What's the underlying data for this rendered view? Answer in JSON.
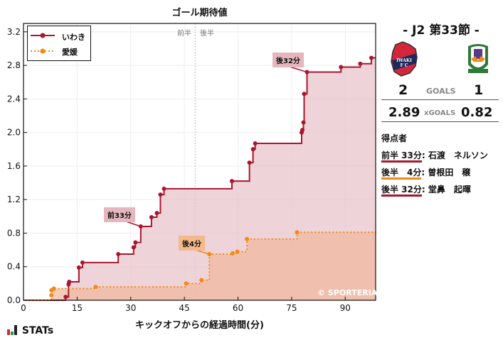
{
  "chart_data": {
    "type": "line",
    "subtype": "step",
    "title": "ゴール期待値",
    "xlabel": "キックオフからの経過時間(分)",
    "ylabel": "",
    "xlim": [
      0,
      98.5
    ],
    "ylim": [
      0,
      3.3
    ],
    "xticks": [
      0,
      15,
      30,
      45,
      60,
      75,
      90
    ],
    "yticks": [
      0.0,
      0.4,
      0.8,
      1.2,
      1.6,
      2.0,
      2.4,
      2.8,
      3.2
    ],
    "grid": true,
    "legend_position": "upper left",
    "halftime_line_x": 48,
    "halftime_labels": [
      "前半",
      "後半"
    ],
    "series": [
      {
        "name": "いわき",
        "color": "#a8162f",
        "fill": "#e8c4cb",
        "style": "solid",
        "points": [
          [
            0,
            0
          ],
          [
            11.8,
            0.04
          ],
          [
            12.6,
            0.19
          ],
          [
            12.8,
            0.22
          ],
          [
            15.5,
            0.39
          ],
          [
            16.5,
            0.45
          ],
          [
            26.5,
            0.55
          ],
          [
            30.8,
            0.63
          ],
          [
            31.3,
            0.69
          ],
          [
            32.8,
            0.88
          ],
          [
            35.8,
            0.99
          ],
          [
            37.3,
            1.04
          ],
          [
            38.3,
            1.26
          ],
          [
            39.3,
            1.33
          ],
          [
            58.3,
            1.42
          ],
          [
            63.2,
            1.64
          ],
          [
            64.2,
            1.8
          ],
          [
            64.8,
            1.87
          ],
          [
            77.8,
            2.0
          ],
          [
            78.0,
            2.03
          ],
          [
            78.3,
            2.12
          ],
          [
            78.5,
            2.46
          ],
          [
            79.3,
            2.72
          ],
          [
            88.8,
            2.78
          ],
          [
            94.2,
            2.82
          ],
          [
            97.3,
            2.89
          ],
          [
            98.5,
            2.89
          ]
        ]
      },
      {
        "name": "愛媛",
        "color": "#f28a12",
        "fill": "#f0b8a0",
        "style": "dotted",
        "points": [
          [
            0,
            0
          ],
          [
            7.8,
            0.06
          ],
          [
            7.8,
            0.12
          ],
          [
            8.5,
            0.14
          ],
          [
            20.2,
            0.16
          ],
          [
            45.5,
            0.2
          ],
          [
            49.8,
            0.24
          ],
          [
            52.0,
            0.55
          ],
          [
            58.5,
            0.56
          ],
          [
            59.8,
            0.58
          ],
          [
            62.5,
            0.73
          ],
          [
            76.5,
            0.81
          ],
          [
            98.5,
            0.82
          ]
        ]
      }
    ],
    "annotations": [
      {
        "text": "前33分",
        "x": 32.8,
        "y": 0.88,
        "team": "いわき"
      },
      {
        "text": "後4分",
        "x": 52.0,
        "y": 0.55,
        "team": "愛媛"
      },
      {
        "text": "後32分",
        "x": 79.3,
        "y": 2.72,
        "team": "いわき"
      }
    ],
    "watermark": "© SPORTERIA"
  },
  "side": {
    "round": "- J2 第33節 -",
    "home_logo": "iwaki-fc-crest",
    "away_logo": "ehime-fc-crest",
    "home_goals": "2",
    "goals_label": "GOALS",
    "away_goals": "1",
    "home_xg": "2.89",
    "xg_label": "xGOALS",
    "away_xg": "0.82",
    "scorers_title": "得点者",
    "scorers": [
      {
        "time": "前半 33分",
        "sep": ":",
        "name": " 石渡　ネルソン",
        "color": "#a8162f"
      },
      {
        "time": "後半　4分",
        "sep": ":",
        "name": " 曽根田　穣",
        "color": "#f28a12"
      },
      {
        "time": "後半 32分",
        "sep": ":",
        "name": " 堂鼻　起暉",
        "color": "#a8162f"
      }
    ]
  },
  "footer": {
    "brand": "STATs"
  }
}
